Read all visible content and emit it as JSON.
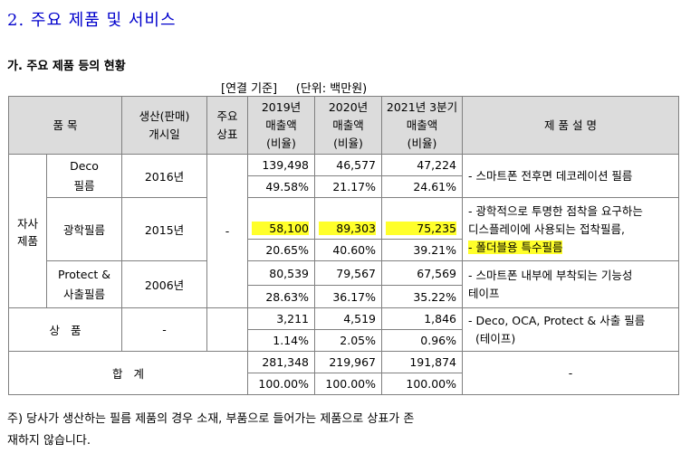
{
  "section_title": "2. 주요 제품 및 서비스",
  "subsection_title": "가. 주요 제품 등의 현황",
  "unit_line": "[연결 기준]     (단위: 백만원)",
  "headers": {
    "item": "품 목",
    "start_line1": "생산(판매)",
    "start_line2": "개시일",
    "trademark_line1": "주요",
    "trademark_line2": "상표",
    "y2019_line1": "2019년",
    "y2019_line2": "매출액",
    "y2019_line3": "(비율)",
    "y2020_line1": "2020년",
    "y2020_line2": "매출액",
    "y2020_line3": "(비율)",
    "q2021_line1": "2021년 3분기",
    "q2021_line2": "매출액",
    "q2021_line3": "(비율)",
    "desc": "제 품 설 명"
  },
  "group_own_line1": "자사",
  "group_own_line2": "제품",
  "trademark_value": "-",
  "rows": {
    "deco": {
      "name_line1": "Deco",
      "name_line2": "필름",
      "start": "2016년",
      "amt2019": "139,498",
      "amt2020": "46,577",
      "amt2021": "47,224",
      "pct2019": "49.58%",
      "pct2020": "21.17%",
      "pct2021": "24.61%",
      "desc": "- 스마트폰 전후면 데코레이션 필름"
    },
    "optical": {
      "name": "광학필름",
      "start": "2015년",
      "amt2019": "58,100",
      "amt2020": "89,303",
      "amt2021": "75,235",
      "pct2019": "20.65%",
      "pct2020": "40.60%",
      "pct2021": "39.21%",
      "desc_line1": "- 광학적으로 투명한 점착을 요구하는",
      "desc_line2": "디스플레이에 사용되는 접착필름,",
      "desc_line3": "- 폴더블용 특수필름"
    },
    "protect": {
      "name_line1": "Protect &",
      "name_line2": "사출필름",
      "start": "2006년",
      "amt2019": "80,539",
      "amt2020": "79,567",
      "amt2021": "67,569",
      "pct2019": "28.63%",
      "pct2020": "36.17%",
      "pct2021": "35.22%",
      "desc_line1": "- 스마트폰 내부에 부착되는 기능성",
      "desc_line2": "테이프"
    },
    "goods": {
      "name": "상   품",
      "start": "-",
      "amt2019": "3,211",
      "amt2020": "4,519",
      "amt2021": "1,846",
      "pct2019": "1.14%",
      "pct2020": "2.05%",
      "pct2021": "0.96%",
      "desc_line1": "- Deco, OCA, Protect & 사출 필름",
      "desc_line2": "(테이프)"
    },
    "total": {
      "name": "합   계",
      "amt2019": "281,348",
      "amt2020": "219,967",
      "amt2021": "191,874",
      "pct2019": "100.00%",
      "pct2020": "100.00%",
      "pct2021": "100.00%",
      "desc": "-"
    }
  },
  "note_line1": "주) 당사가 생산하는 필름 제품의 경우 소재, 부품으로 들어가는 제품으로 상표가 존",
  "note_line2": "재하지 않습니다.",
  "colors": {
    "title_blue": "#0000cc",
    "header_bg": "#dcdcdc",
    "highlight": "#ffff2a",
    "border": "#808080"
  }
}
